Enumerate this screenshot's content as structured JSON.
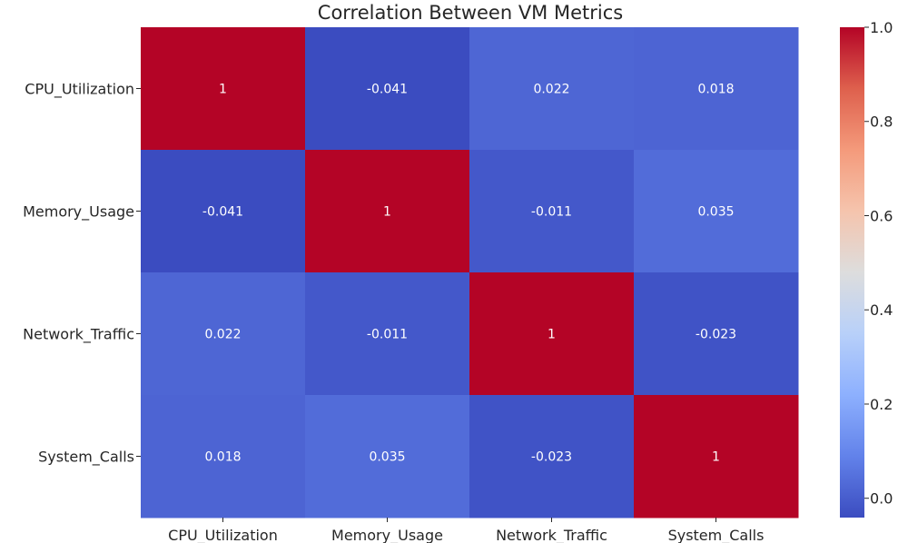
{
  "chart_data": {
    "type": "heatmap",
    "title": "Correlation Between VM Metrics",
    "xlabel": "",
    "ylabel": "",
    "x_categories": [
      "CPU_Utilization",
      "Memory_Usage",
      "Network_Traffic",
      "System_Calls"
    ],
    "y_categories": [
      "CPU_Utilization",
      "Memory_Usage",
      "Network_Traffic",
      "System_Calls"
    ],
    "values": [
      [
        1,
        -0.041,
        0.022,
        0.018
      ],
      [
        -0.041,
        1,
        -0.011,
        0.035
      ],
      [
        0.022,
        -0.011,
        1,
        -0.023
      ],
      [
        0.018,
        0.035,
        -0.023,
        1
      ]
    ],
    "annotations": [
      [
        "1",
        "-0.041",
        "0.022",
        "0.018"
      ],
      [
        "-0.041",
        "1",
        "-0.011",
        "0.035"
      ],
      [
        "0.022",
        "-0.011",
        "1",
        "-0.023"
      ],
      [
        "0.018",
        "0.035",
        "-0.023",
        "1"
      ]
    ],
    "colormap": "coolwarm",
    "colorbar": {
      "range": [
        -0.041,
        1
      ],
      "ticks": [
        0.0,
        0.2,
        0.4,
        0.6,
        0.8,
        1.0
      ],
      "tick_labels": [
        "0.0",
        "0.2",
        "0.4",
        "0.6",
        "0.8",
        "1.0"
      ],
      "placement": "right"
    },
    "grid": false
  }
}
